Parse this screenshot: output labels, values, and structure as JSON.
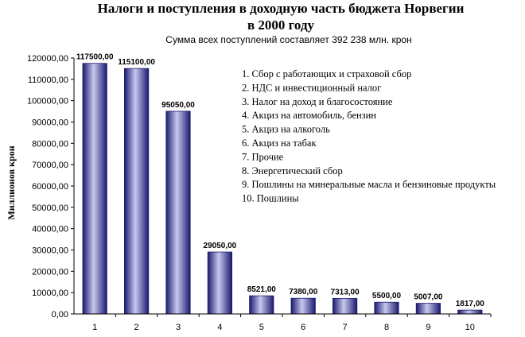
{
  "chart_data": {
    "type": "bar",
    "title_lines": [
      "Налоги и  поступления в доходную часть бюджета Норвегии",
      "в 2000 году"
    ],
    "subtitle": "Сумма всех  поступлений составляет 392 238  млн. крон",
    "ylabel": "Миллионов крон",
    "xlabel": "",
    "categories": [
      "1",
      "2",
      "3",
      "4",
      "5",
      "6",
      "7",
      "8",
      "9",
      "10"
    ],
    "values": [
      117500,
      115100,
      95050,
      29050,
      8521,
      7380,
      7313,
      5500,
      5007,
      1817
    ],
    "value_labels": [
      "117500,00",
      "115100,00",
      "95050,00",
      "29050,00",
      "8521,00",
      "7380,00",
      "7313,00",
      "5500,00",
      "5007,00",
      "1817,00"
    ],
    "ylim": [
      0,
      120000
    ],
    "yticks": [
      "0,00",
      "10000,00",
      "20000,00",
      "30000,00",
      "40000,00",
      "50000,00",
      "60000,00",
      "70000,00",
      "80000,00",
      "90000,00",
      "100000,00",
      "110000,00",
      "120000,00"
    ],
    "legend_position": "top-right",
    "legend": [
      "1. Сбор с работающих и страховой сбор",
      "2. НДС и инвестиционный налог",
      "3. Налог на доход и благосостояние",
      "4. Акциз на автомобиль, бензин",
      "5. Акциз на алкоголь",
      "6. Акциз на табак",
      "7. Прочие",
      "8. Энергетический сбор",
      "9. Пошлины на минеральные масла и бензиновые продукты",
      "10. Пошлины"
    ],
    "grid": false,
    "bar_colors": {
      "dark": "#1a1a6e",
      "mid": "#3a3ab0",
      "light": "#c8c8f0"
    }
  }
}
